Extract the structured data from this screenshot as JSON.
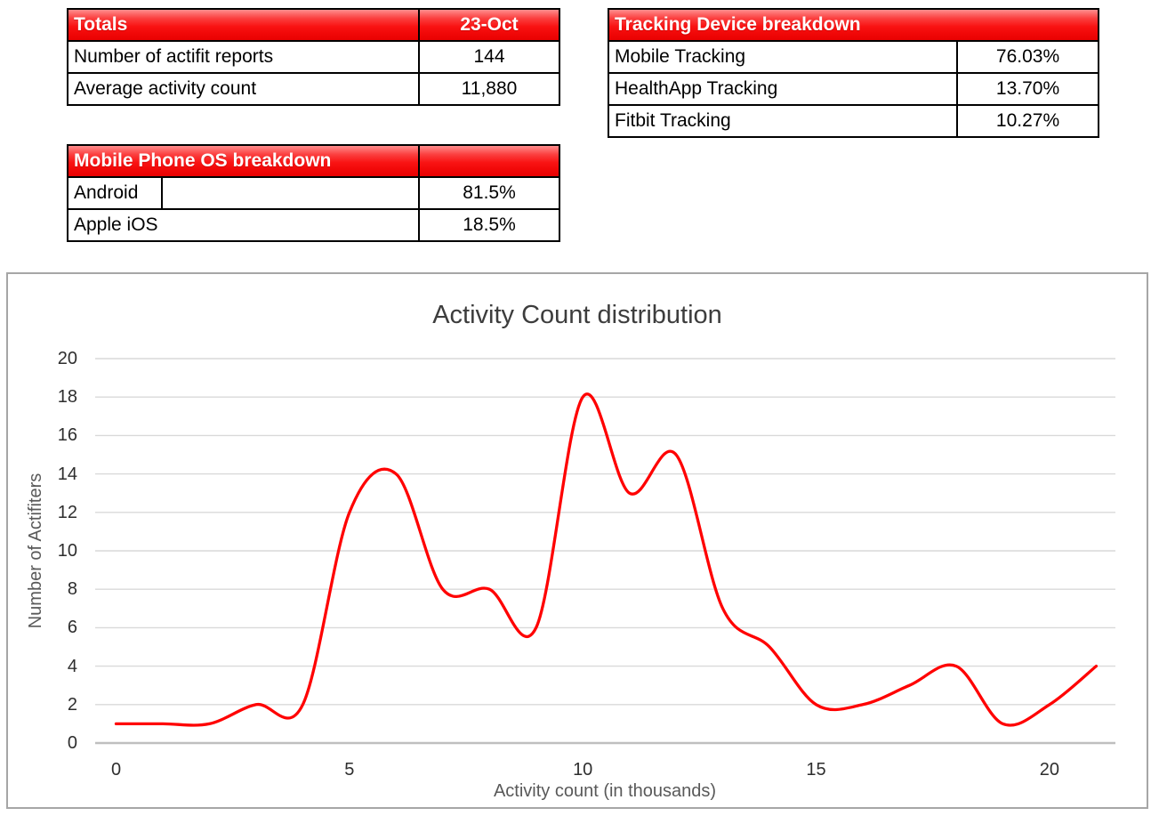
{
  "tables": {
    "totals": {
      "header": [
        "Totals",
        "23-Oct"
      ],
      "rows": [
        [
          "Number of actifit reports",
          "144"
        ],
        [
          "Average activity count",
          "11,880"
        ]
      ]
    },
    "tracking": {
      "header": "Tracking Device breakdown",
      "rows": [
        [
          "Mobile Tracking",
          "76.03%"
        ],
        [
          "HealthApp Tracking",
          "13.70%"
        ],
        [
          "Fitbit Tracking",
          "10.27%"
        ]
      ]
    },
    "os": {
      "header": "Mobile Phone OS breakdown",
      "rows": [
        [
          "Android",
          "81.5%"
        ],
        [
          "Apple iOS",
          "18.5%"
        ]
      ]
    }
  },
  "chart_data": {
    "type": "line",
    "title": "Activity Count distribution",
    "xlabel": "Activity count (in thousands)",
    "ylabel": "Number of Actifiters",
    "x": [
      0,
      1,
      2,
      3,
      4,
      5,
      6,
      7,
      8,
      9,
      10,
      11,
      12,
      13,
      14,
      15,
      16,
      17,
      18,
      19,
      20,
      21
    ],
    "y": [
      1,
      1,
      1,
      2,
      2,
      12,
      14,
      8,
      8,
      6,
      18,
      13,
      15,
      7,
      5,
      2,
      2,
      3,
      4,
      1,
      2,
      4
    ],
    "xlim": [
      -0.5,
      21.5
    ],
    "ylim": [
      0,
      20
    ],
    "xticks": [
      0,
      5,
      10,
      15,
      20
    ],
    "yticks": [
      0,
      2,
      4,
      6,
      8,
      10,
      12,
      14,
      16,
      18,
      20
    ],
    "grid": "horizontal",
    "legend": "none",
    "smooth": true,
    "line_color": "#ff0000",
    "grid_color": "#d9d9d9",
    "axis_color": "#bfbfbf"
  },
  "colors": {
    "table_header_red": "#f20c0c",
    "table_border": "#000000",
    "chart_border": "#a6a6a6",
    "title_text": "#3d3d3d",
    "axis_title_text": "#595959",
    "tick_text": "#2e2e2e"
  }
}
